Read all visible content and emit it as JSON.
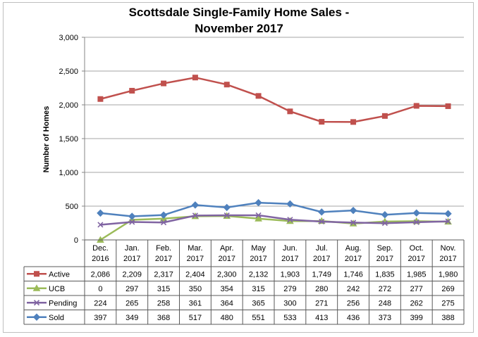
{
  "chart_data": {
    "type": "line",
    "title_line1": "Scottsdale Single-Family Home Sales -",
    "title_line2": "November 2017",
    "ylabel": "Number of Homes",
    "xlabel": "",
    "ylim": [
      0,
      3000
    ],
    "yticks": [
      "0",
      "500",
      "1,000",
      "1,500",
      "2,000",
      "2,500",
      "3,000"
    ],
    "ytick_values": [
      0,
      500,
      1000,
      1500,
      2000,
      2500,
      3000
    ],
    "grid": true,
    "legend_placement": "data-table-left",
    "categories": [
      [
        "Dec.",
        "2016"
      ],
      [
        "Jan.",
        "2017"
      ],
      [
        "Feb.",
        "2017"
      ],
      [
        "Mar.",
        "2017"
      ],
      [
        "Apr.",
        "2017"
      ],
      [
        "May",
        "2017"
      ],
      [
        "Jun.",
        "2017"
      ],
      [
        "Jul.",
        "2017"
      ],
      [
        "Aug.",
        "2017"
      ],
      [
        "Sep.",
        "2017"
      ],
      [
        "Oct.",
        "2017"
      ],
      [
        "Nov.",
        "2017"
      ]
    ],
    "series": [
      {
        "name": "Active",
        "color": "#c0504d",
        "marker": "square",
        "values": [
          2086,
          2209,
          2317,
          2404,
          2300,
          2132,
          1903,
          1749,
          1746,
          1835,
          1985,
          1980
        ],
        "labels": [
          "2,086",
          "2,209",
          "2,317",
          "2,404",
          "2,300",
          "2,132",
          "1,903",
          "1,749",
          "1,746",
          "1,835",
          "1,985",
          "1,980"
        ]
      },
      {
        "name": "UCB",
        "color": "#9bbb59",
        "marker": "triangle",
        "values": [
          0,
          297,
          315,
          350,
          354,
          315,
          279,
          280,
          242,
          272,
          277,
          269
        ],
        "labels": [
          "0",
          "297",
          "315",
          "350",
          "354",
          "315",
          "279",
          "280",
          "242",
          "272",
          "277",
          "269"
        ]
      },
      {
        "name": "Pending",
        "color": "#8064a2",
        "marker": "x",
        "values": [
          224,
          265,
          258,
          361,
          364,
          365,
          300,
          271,
          256,
          248,
          262,
          275
        ],
        "labels": [
          "224",
          "265",
          "258",
          "361",
          "364",
          "365",
          "300",
          "271",
          "256",
          "248",
          "262",
          "275"
        ]
      },
      {
        "name": "Sold",
        "color": "#4f81bd",
        "marker": "diamond",
        "values": [
          397,
          349,
          368,
          517,
          480,
          551,
          533,
          413,
          436,
          373,
          399,
          388
        ],
        "labels": [
          "397",
          "349",
          "368",
          "517",
          "480",
          "551",
          "533",
          "413",
          "436",
          "373",
          "399",
          "388"
        ]
      }
    ]
  }
}
